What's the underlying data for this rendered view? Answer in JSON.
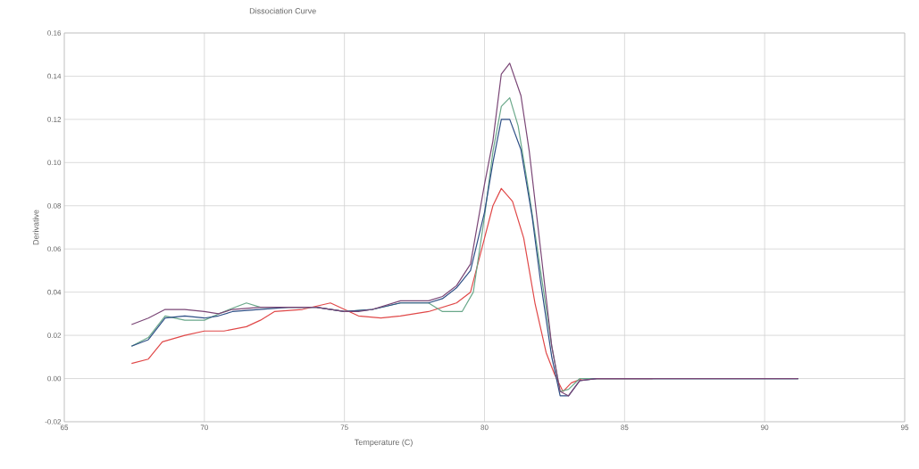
{
  "chart_data": {
    "type": "line",
    "title": "Dissociation Curve",
    "xlabel": "Temperature (C)",
    "ylabel": "Derivative",
    "xlim": [
      65,
      95
    ],
    "xticks": [
      65,
      70,
      75,
      80,
      85,
      90,
      95
    ],
    "ylim": [
      -0.02,
      0.16
    ],
    "yticks": [
      {
        "value": -0.02,
        "label": "-0.02"
      },
      {
        "value": 0,
        "label": "0.00"
      },
      {
        "value": 0.02,
        "label": "0.02"
      },
      {
        "value": 0.04,
        "label": "0.04"
      },
      {
        "value": 0.06,
        "label": "0.06"
      },
      {
        "value": 0.08,
        "label": "0.08"
      },
      {
        "value": 0.1,
        "label": "0.10"
      },
      {
        "value": 0.12,
        "label": "0.12"
      },
      {
        "value": 0.14,
        "label": "0.14"
      },
      {
        "value": 0.16,
        "label": "0.16"
      }
    ],
    "grid": true,
    "line_style": "solid",
    "marker": "none",
    "series": [
      {
        "color": "#e04848",
        "x": [
          67.4,
          68.0,
          68.5,
          69.3,
          70.0,
          70.7,
          71.5,
          72.0,
          72.5,
          73.5,
          74.5,
          75.0,
          75.5,
          76.3,
          77.0,
          78.0,
          79.0,
          79.5,
          80.0,
          80.3,
          80.6,
          81.0,
          81.4,
          81.8,
          82.2,
          82.5,
          82.8,
          83.1,
          83.5,
          86.0
        ],
        "values": [
          0.007,
          0.009,
          0.017,
          0.02,
          0.022,
          0.022,
          0.024,
          0.027,
          0.031,
          0.032,
          0.035,
          0.032,
          0.029,
          0.028,
          0.029,
          0.031,
          0.035,
          0.04,
          0.065,
          0.08,
          0.088,
          0.082,
          0.065,
          0.035,
          0.012,
          0.002,
          -0.006,
          -0.002,
          0.0,
          0.0
        ]
      },
      {
        "color": "#6aa88a",
        "x": [
          67.4,
          68.0,
          68.6,
          69.3,
          70.0,
          70.7,
          71.5,
          72.0,
          73.0,
          74.0,
          75.0,
          76.0,
          77.0,
          78.0,
          78.5,
          79.2,
          79.6,
          80.0,
          80.3,
          80.6,
          80.9,
          81.2,
          81.6,
          82.0,
          82.4,
          82.7,
          83.0,
          83.4,
          84.0,
          88.0,
          91.2
        ],
        "values": [
          0.015,
          0.019,
          0.029,
          0.027,
          0.027,
          0.031,
          0.035,
          0.033,
          0.033,
          0.033,
          0.031,
          0.032,
          0.035,
          0.035,
          0.031,
          0.031,
          0.04,
          0.075,
          0.105,
          0.126,
          0.13,
          0.117,
          0.085,
          0.05,
          0.015,
          -0.006,
          -0.005,
          0.0,
          0.0,
          0.0,
          0.0
        ]
      },
      {
        "color": "#2e4f86",
        "x": [
          67.4,
          68.0,
          68.6,
          69.3,
          70.0,
          70.5,
          71.0,
          72.0,
          73.0,
          74.0,
          75.0,
          76.0,
          77.0,
          78.0,
          78.5,
          79.0,
          79.5,
          80.0,
          80.3,
          80.6,
          80.9,
          81.3,
          81.7,
          82.0,
          82.4,
          82.7,
          83.0,
          83.4,
          84.0,
          88.0,
          91.2
        ],
        "values": [
          0.015,
          0.018,
          0.028,
          0.029,
          0.028,
          0.029,
          0.031,
          0.032,
          0.033,
          0.033,
          0.031,
          0.032,
          0.035,
          0.035,
          0.037,
          0.042,
          0.05,
          0.077,
          0.1,
          0.12,
          0.12,
          0.106,
          0.075,
          0.045,
          0.01,
          -0.008,
          -0.008,
          -0.001,
          0.0,
          0.0,
          0.0
        ]
      },
      {
        "color": "#7a4676",
        "x": [
          67.4,
          68.0,
          68.6,
          69.3,
          70.0,
          70.5,
          71.0,
          72.0,
          73.0,
          74.0,
          75.0,
          75.5,
          76.0,
          77.0,
          78.0,
          78.5,
          79.0,
          79.5,
          80.0,
          80.3,
          80.6,
          80.9,
          81.3,
          81.6,
          82.0,
          82.4,
          82.7,
          83.0,
          83.4,
          84.0,
          86.0,
          88.0,
          90.0,
          91.2
        ],
        "values": [
          0.025,
          0.028,
          0.032,
          0.032,
          0.031,
          0.03,
          0.032,
          0.033,
          0.033,
          0.033,
          0.031,
          0.031,
          0.032,
          0.036,
          0.036,
          0.038,
          0.043,
          0.053,
          0.09,
          0.11,
          0.141,
          0.146,
          0.131,
          0.105,
          0.06,
          0.015,
          -0.006,
          -0.008,
          -0.001,
          0.0,
          0.0,
          0.0,
          0.0,
          0.0
        ]
      }
    ]
  }
}
